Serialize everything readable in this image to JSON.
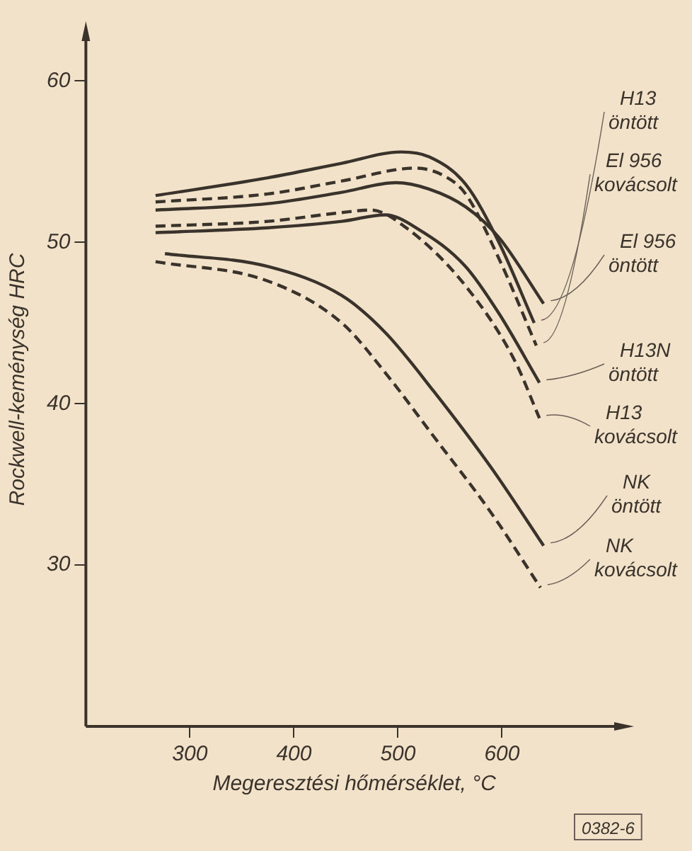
{
  "chart_data": {
    "type": "line",
    "xlabel": "Megeresztési hőmérséklet, °C",
    "ylabel": "Rockwell-keménység HRC",
    "xlim": [
      200,
      716
    ],
    "xticks": [
      300,
      400,
      500,
      600
    ],
    "ylim": [
      20,
      63
    ],
    "yticks": [
      30,
      40,
      50,
      60
    ],
    "grid": false,
    "legend": false,
    "marker": "none",
    "annotations": [
      "0382-6"
    ],
    "series": [
      {
        "name": "H13 öntött",
        "color": "#3a332c",
        "line_style": "solid",
        "x": [
          267,
          375,
          446,
          503,
          530,
          565,
          597,
          631
        ],
        "values": [
          52.9,
          54.0,
          54.9,
          55.6,
          55.3,
          53.6,
          50.0,
          45.0
        ]
      },
      {
        "name": "El 956 kovácsolt",
        "color": "#3a332c",
        "line_style": "dashed",
        "x": [
          267,
          375,
          446,
          517,
          545,
          565,
          597,
          633
        ],
        "values": [
          52.5,
          53.0,
          53.8,
          54.6,
          54.1,
          53.0,
          49.0,
          43.6
        ]
      },
      {
        "name": "El 956 öntött",
        "color": "#3a332c",
        "line_style": "solid",
        "x": [
          267,
          375,
          446,
          498,
          530,
          565,
          597,
          640
        ],
        "values": [
          52.0,
          52.4,
          53.1,
          53.7,
          53.3,
          52.2,
          50.3,
          46.2
        ]
      },
      {
        "name": "H13N öntött",
        "color": "#3a332c",
        "line_style": "solid",
        "x": [
          267,
          375,
          446,
          488,
          520,
          565,
          597,
          636
        ],
        "values": [
          50.6,
          50.9,
          51.3,
          51.7,
          50.8,
          48.5,
          45.6,
          41.3
        ]
      },
      {
        "name": "H13 kovácsolt",
        "color": "#3a332c",
        "line_style": "dashed",
        "x": [
          267,
          375,
          440,
          474,
          510,
          565,
          612,
          636
        ],
        "values": [
          51.0,
          51.3,
          51.8,
          52.0,
          50.8,
          47.3,
          42.7,
          39.1
        ]
      },
      {
        "name": "NK öntött",
        "color": "#3a332c",
        "line_style": "solid",
        "x": [
          276,
          375,
          446,
          488,
          534,
          590,
          640
        ],
        "values": [
          49.3,
          48.5,
          46.7,
          44.4,
          40.8,
          36.0,
          31.2
        ]
      },
      {
        "name": "NK kovácsolt",
        "color": "#3a332c",
        "line_style": "dashed",
        "x": [
          267,
          375,
          446,
          488,
          534,
          590,
          637
        ],
        "values": [
          48.8,
          47.6,
          45.0,
          41.9,
          38.0,
          33.2,
          28.6
        ]
      }
    ]
  }
}
